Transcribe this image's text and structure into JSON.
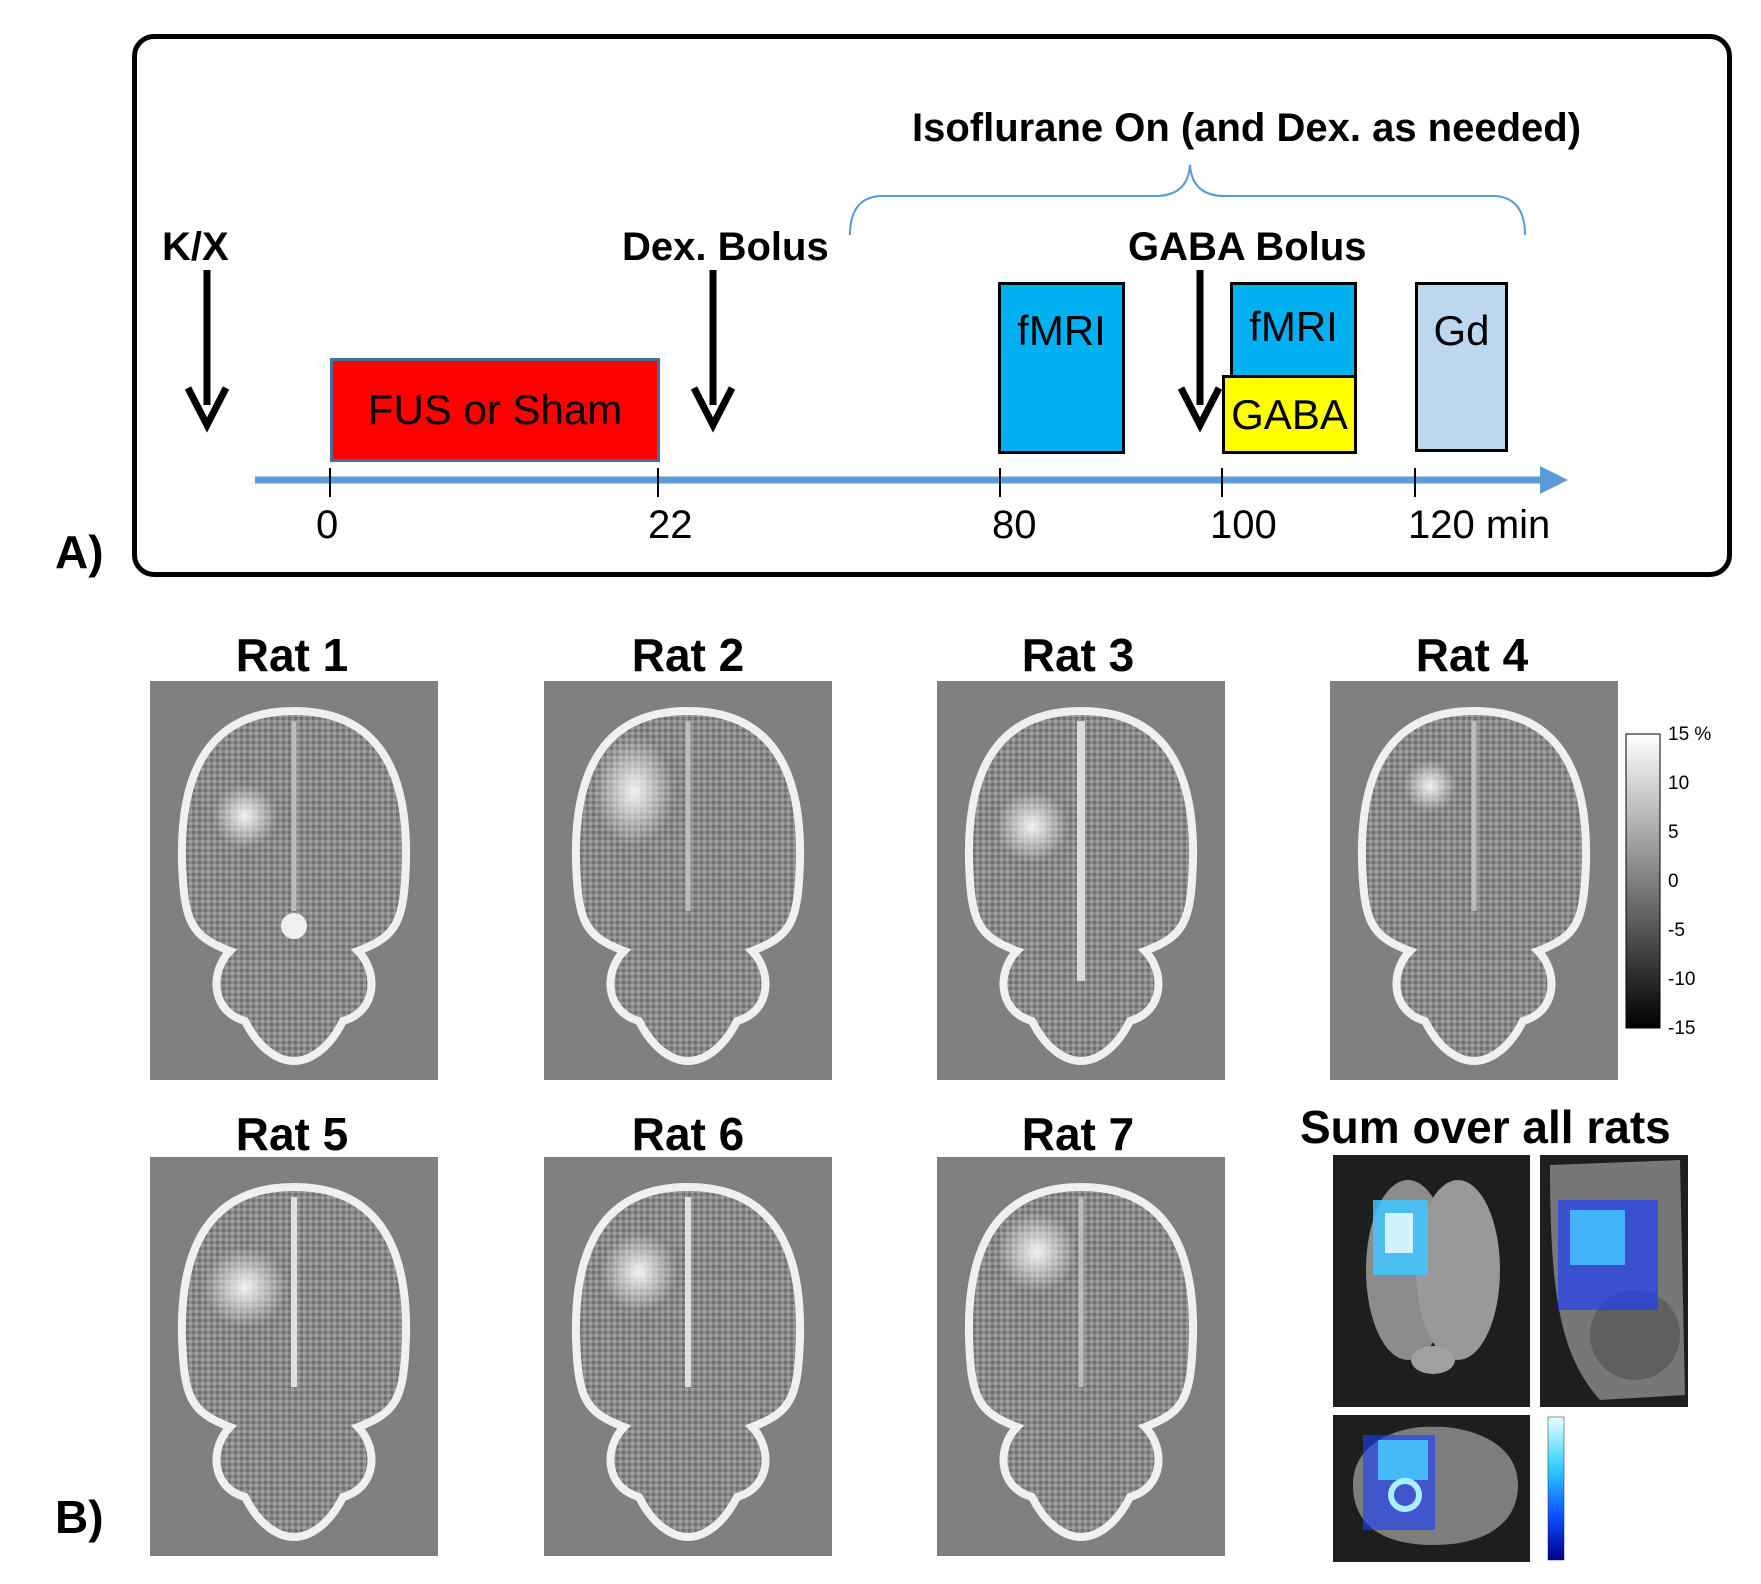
{
  "panel_a": {
    "label": "A)",
    "isoflurane_label": "Isoflurane On (and Dex. as needed)",
    "events": {
      "kx": "K/X",
      "dex_bolus": "Dex. Bolus",
      "gaba_bolus": "GABA Bolus"
    },
    "blocks": {
      "fus": "FUS or Sham",
      "fmri_1": "fMRI",
      "fmri_2": "fMRI",
      "gaba": "GABA",
      "gd": "Gd"
    },
    "ticks": [
      "0",
      "22",
      "80",
      "100",
      "120 min"
    ],
    "colors": {
      "fus": "#ff0000",
      "fmri": "#00b0f0",
      "gaba": "#ffff00",
      "gd": "#bdd7ee",
      "axis": "#5b9bd5"
    }
  },
  "panel_b": {
    "label": "B)",
    "rats": [
      "Rat 1",
      "Rat 2",
      "Rat 3",
      "Rat 4",
      "Rat 5",
      "Rat 6",
      "Rat 7"
    ],
    "colorbar_ticks": [
      "15 %",
      "10",
      "5",
      "0",
      "-5",
      "-10",
      "-15"
    ],
    "sum_title": "Sum over all rats"
  }
}
